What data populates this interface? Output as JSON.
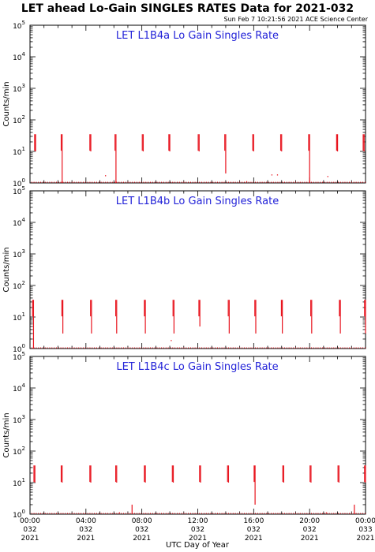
{
  "header": {
    "title": "LET ahead Lo-Gain SINGLES RATES Data for 2021-032",
    "timestamp": "Sun Feb  7 10:21:56 2021 ACE Science Center"
  },
  "colors": {
    "series": "#e8141e",
    "panel_title": "#2323d8",
    "axes": "#000000"
  },
  "chart_data": {
    "type": "scatter",
    "y_scale": "log",
    "ylim": [
      1,
      100000
    ],
    "xlim": [
      "00:00",
      "24:00"
    ],
    "ylabel": "Counts/min",
    "xlabel": "UTC Day of Year",
    "y_ticks": [
      {
        "base": "10",
        "exp": "0"
      },
      {
        "base": "10",
        "exp": "1"
      },
      {
        "base": "10",
        "exp": "2"
      },
      {
        "base": "10",
        "exp": "3"
      },
      {
        "base": "10",
        "exp": "4"
      },
      {
        "base": "10",
        "exp": "5"
      }
    ],
    "x_ticks": [
      {
        "time": "00:00",
        "day": "032",
        "year": "2021"
      },
      {
        "time": "04:00",
        "day": "032",
        "year": "2021"
      },
      {
        "time": "08:00",
        "day": "032",
        "year": "2021"
      },
      {
        "time": "12:00",
        "day": "032",
        "year": "2021"
      },
      {
        "time": "16:00",
        "day": "032",
        "year": "2021"
      },
      {
        "time": "20:00",
        "day": "032",
        "year": "2021"
      },
      {
        "time": "00:00",
        "day": "033",
        "year": "2021"
      }
    ],
    "panels": [
      {
        "title": "LET L1B4a Lo Gain Singles Rate",
        "bursts": [
          {
            "t": 0.4,
            "top": 35,
            "bottom": 10
          },
          {
            "t": 2.3,
            "top": 35,
            "bottom": 1
          },
          {
            "t": 4.35,
            "top": 35,
            "bottom": 10
          },
          {
            "t": 6.15,
            "top": 35,
            "bottom": 1
          },
          {
            "t": 8.1,
            "top": 35,
            "bottom": 10
          },
          {
            "t": 10.0,
            "top": 35,
            "bottom": 10
          },
          {
            "t": 12.1,
            "top": 35,
            "bottom": 10
          },
          {
            "t": 14.0,
            "top": 35,
            "bottom": 2
          },
          {
            "t": 16.0,
            "top": 35,
            "bottom": 10
          },
          {
            "t": 18.0,
            "top": 35,
            "bottom": 10
          },
          {
            "t": 20.0,
            "top": 35,
            "bottom": 1
          },
          {
            "t": 22.0,
            "top": 35,
            "bottom": 10
          },
          {
            "t": 23.9,
            "top": 35,
            "bottom": 10
          }
        ],
        "isolated": [
          {
            "t": 5.4,
            "y": 1.7
          },
          {
            "t": 21.3,
            "y": 1.6
          },
          {
            "t": 17.3,
            "y": 1.8
          },
          {
            "t": 17.7,
            "y": 1.8
          },
          {
            "t": 15.5,
            "y": 1.1
          }
        ]
      },
      {
        "title": "LET L1B4b Lo Gain Singles Rate",
        "bursts": [
          {
            "t": 0.25,
            "top": 35,
            "bottom": 1
          },
          {
            "t": 2.35,
            "top": 35,
            "bottom": 3
          },
          {
            "t": 4.4,
            "top": 35,
            "bottom": 3
          },
          {
            "t": 6.2,
            "top": 35,
            "bottom": 3
          },
          {
            "t": 8.25,
            "top": 35,
            "bottom": 3
          },
          {
            "t": 10.3,
            "top": 35,
            "bottom": 3
          },
          {
            "t": 12.15,
            "top": 35,
            "bottom": 5
          },
          {
            "t": 14.25,
            "top": 35,
            "bottom": 3
          },
          {
            "t": 16.15,
            "top": 35,
            "bottom": 3
          },
          {
            "t": 18.05,
            "top": 35,
            "bottom": 3
          },
          {
            "t": 20.15,
            "top": 35,
            "bottom": 3
          },
          {
            "t": 22.2,
            "top": 35,
            "bottom": 3
          },
          {
            "t": 24.0,
            "top": 35,
            "bottom": 3
          }
        ],
        "isolated": [
          {
            "t": 10.1,
            "y": 1.8
          }
        ]
      },
      {
        "title": "LET L1B4c Lo Gain Singles Rate",
        "bursts": [
          {
            "t": 0.35,
            "top": 35,
            "bottom": 10
          },
          {
            "t": 2.3,
            "top": 35,
            "bottom": 10
          },
          {
            "t": 4.35,
            "top": 35,
            "bottom": 10
          },
          {
            "t": 6.2,
            "top": 35,
            "bottom": 10
          },
          {
            "t": 8.25,
            "top": 35,
            "bottom": 10
          },
          {
            "t": 10.25,
            "top": 35,
            "bottom": 10
          },
          {
            "t": 12.2,
            "top": 35,
            "bottom": 10
          },
          {
            "t": 14.2,
            "top": 35,
            "bottom": 10
          },
          {
            "t": 16.1,
            "top": 35,
            "bottom": 2
          },
          {
            "t": 18.15,
            "top": 35,
            "bottom": 10
          },
          {
            "t": 20.1,
            "top": 35,
            "bottom": 10
          },
          {
            "t": 22.1,
            "top": 35,
            "bottom": 10
          },
          {
            "t": 24.0,
            "top": 35,
            "bottom": 10
          }
        ],
        "spikes": [
          {
            "t": 7.3,
            "y": 2
          },
          {
            "t": 23.2,
            "y": 2
          }
        ],
        "isolated": [
          {
            "t": 21.2,
            "y": 1.1
          },
          {
            "t": 6.4,
            "y": 1.1
          }
        ]
      }
    ]
  }
}
